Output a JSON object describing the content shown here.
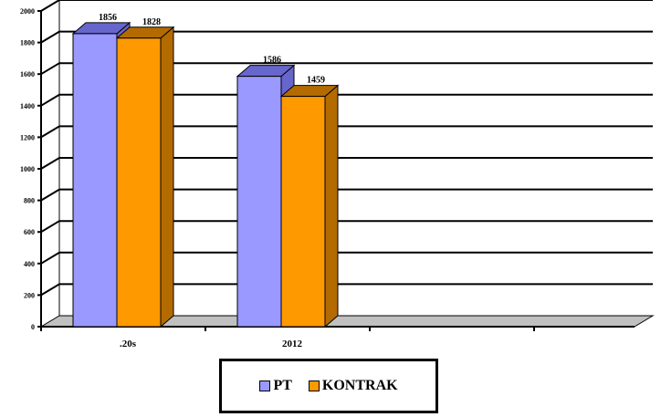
{
  "chart_data": {
    "type": "bar",
    "three_d": true,
    "categories": [
      ".20s",
      "2012",
      ""
    ],
    "series": [
      {
        "name": "PT",
        "color": "#9999ff",
        "side_color": "#6666cc",
        "values": [
          1856,
          1586,
          null
        ]
      },
      {
        "name": "KONTRAK",
        "color": "#ff9900",
        "side_color": "#b36b00",
        "values": [
          1828,
          1459,
          null
        ]
      }
    ],
    "data_labels": [
      [
        "1856",
        "1828"
      ],
      [
        "1586",
        "1459"
      ]
    ],
    "ylim": [
      0,
      2000
    ],
    "yticks": [
      0,
      200,
      400,
      600,
      800,
      1000,
      1200,
      1400,
      1600,
      1800,
      2000
    ],
    "grid": true,
    "legend_position": "bottom"
  }
}
